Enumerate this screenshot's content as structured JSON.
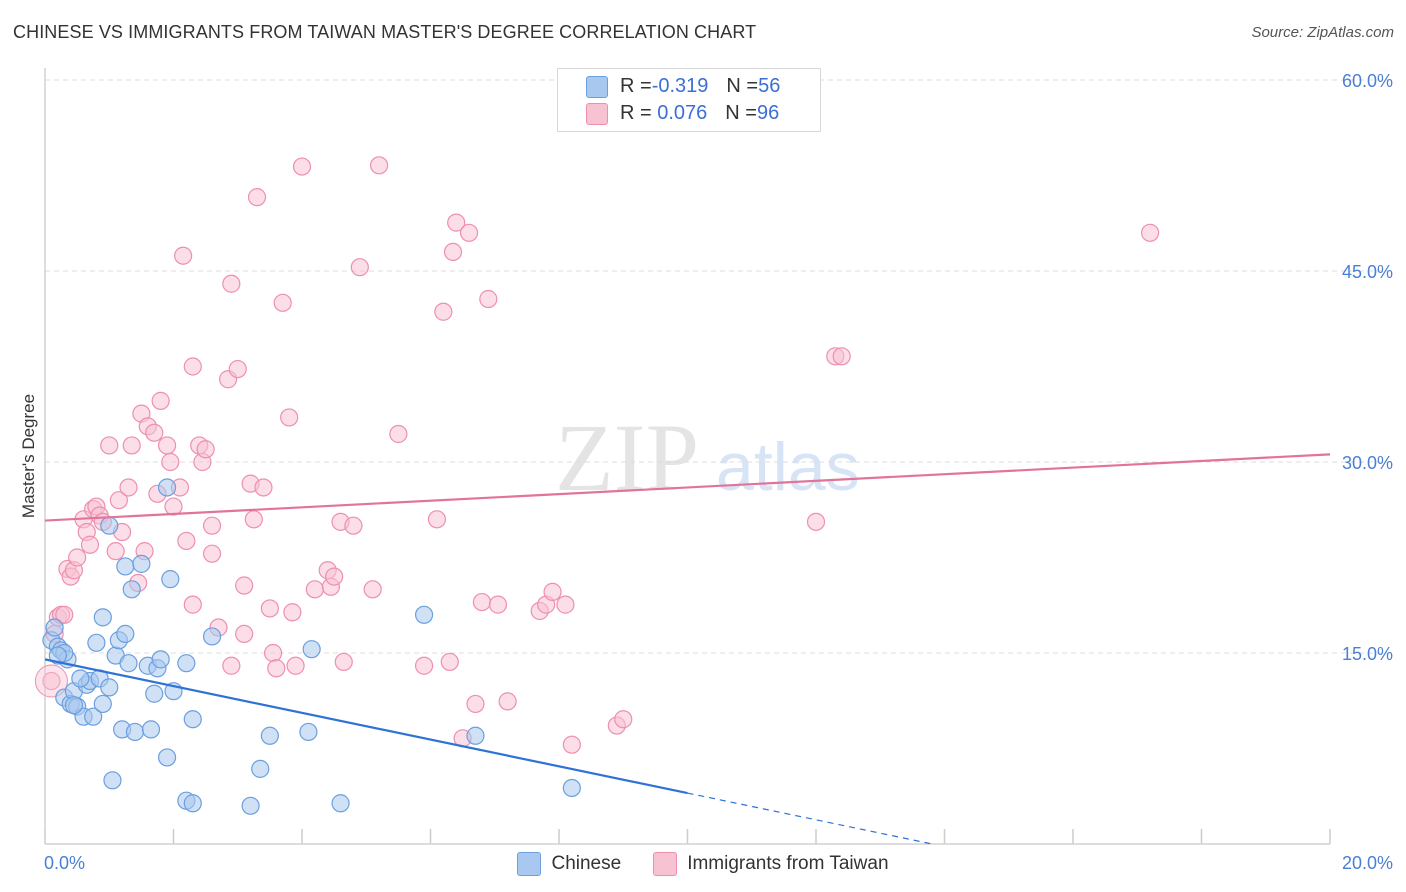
{
  "title": "CHINESE VS IMMIGRANTS FROM TAIWAN MASTER'S DEGREE CORRELATION CHART",
  "source": "Source: ZipAtlas.com",
  "watermark": {
    "zip": "ZIP",
    "atlas": "atlas"
  },
  "colors": {
    "blue_fill": "#a9c8ef",
    "blue_stroke": "#6a9fe0",
    "blue_line": "#2f72d6",
    "pink_fill": "#f7c3d3",
    "pink_stroke": "#ee8fae",
    "pink_line": "#e2739b",
    "axis_text": "#4a7fd4",
    "grid": "#dddddd"
  },
  "legend": {
    "rows": [
      {
        "r_label": "R = ",
        "r_value": "-0.319",
        "n_label": "N = ",
        "n_value": "56",
        "series": "blue"
      },
      {
        "r_label": "R = ",
        "r_value": " 0.076",
        "n_label": "N = ",
        "n_value": "96",
        "series": "pink"
      }
    ]
  },
  "bottom_legend": [
    "Chinese",
    "Immigrants from Taiwan"
  ],
  "chart_data": {
    "type": "scatter",
    "title": "CHINESE VS IMMIGRANTS FROM TAIWAN MASTER'S DEGREE CORRELATION CHART",
    "xlabel": "",
    "ylabel": "Master's Degree",
    "xlim": [
      0,
      20
    ],
    "ylim": [
      0,
      60
    ],
    "x_tick_labels": [
      "0.0%",
      "20.0%"
    ],
    "y_ticks": [
      15,
      30,
      45,
      60
    ],
    "y_tick_labels": [
      "15.0%",
      "30.0%",
      "45.0%",
      "60.0%"
    ],
    "grid": true,
    "series": [
      {
        "name": "Chinese",
        "color": "blue",
        "trend": {
          "x0": 0,
          "y0": 14.5,
          "x1": 20,
          "y1": -6.5,
          "solid_until_x": 10
        },
        "points": [
          [
            0.1,
            16.0
          ],
          [
            0.15,
            17.0
          ],
          [
            0.2,
            15.5
          ],
          [
            0.25,
            15.2
          ],
          [
            0.3,
            11.5
          ],
          [
            0.35,
            14.5
          ],
          [
            0.4,
            11.0
          ],
          [
            0.45,
            12.0
          ],
          [
            0.5,
            10.8
          ],
          [
            0.6,
            10.0
          ],
          [
            0.65,
            12.5
          ],
          [
            0.7,
            12.8
          ],
          [
            0.75,
            10.0
          ],
          [
            0.8,
            15.8
          ],
          [
            0.85,
            13.0
          ],
          [
            0.9,
            17.8
          ],
          [
            1.0,
            25.0
          ],
          [
            1.0,
            12.3
          ],
          [
            1.05,
            5.0
          ],
          [
            1.1,
            14.8
          ],
          [
            1.15,
            16.0
          ],
          [
            1.2,
            9.0
          ],
          [
            1.25,
            21.8
          ],
          [
            1.3,
            14.2
          ],
          [
            1.35,
            20.0
          ],
          [
            1.4,
            8.8
          ],
          [
            1.5,
            22.0
          ],
          [
            1.6,
            14.0
          ],
          [
            1.65,
            9.0
          ],
          [
            1.7,
            11.8
          ],
          [
            1.75,
            13.8
          ],
          [
            1.8,
            14.5
          ],
          [
            1.9,
            28.0
          ],
          [
            1.9,
            6.8
          ],
          [
            1.95,
            20.8
          ],
          [
            2.0,
            12.0
          ],
          [
            2.2,
            14.2
          ],
          [
            2.2,
            3.4
          ],
          [
            2.3,
            3.2
          ],
          [
            2.3,
            9.8
          ],
          [
            2.6,
            16.3
          ],
          [
            3.2,
            3.0
          ],
          [
            3.35,
            5.9
          ],
          [
            3.5,
            8.5
          ],
          [
            4.1,
            8.8
          ],
          [
            4.15,
            15.3
          ],
          [
            4.6,
            3.2
          ],
          [
            5.9,
            18.0
          ],
          [
            6.7,
            8.5
          ],
          [
            8.2,
            4.4
          ],
          [
            0.3,
            15.0
          ],
          [
            0.55,
            13.0
          ],
          [
            0.9,
            11.0
          ],
          [
            1.25,
            16.5
          ],
          [
            0.2,
            14.8
          ],
          [
            0.45,
            10.9
          ]
        ]
      },
      {
        "name": "Immigrants from Taiwan",
        "color": "pink",
        "trend": {
          "x0": 0,
          "y0": 25.4,
          "x1": 20,
          "y1": 30.6,
          "solid_until_x": 20
        },
        "points": [
          [
            0.1,
            12.8
          ],
          [
            0.15,
            16.5
          ],
          [
            0.2,
            17.8
          ],
          [
            0.25,
            18.0
          ],
          [
            0.3,
            18.0
          ],
          [
            0.35,
            21.6
          ],
          [
            0.4,
            21.0
          ],
          [
            0.45,
            21.5
          ],
          [
            0.5,
            22.5
          ],
          [
            0.6,
            25.5
          ],
          [
            0.65,
            24.5
          ],
          [
            0.7,
            23.5
          ],
          [
            0.75,
            26.3
          ],
          [
            0.8,
            26.5
          ],
          [
            0.85,
            25.8
          ],
          [
            0.9,
            25.3
          ],
          [
            1.0,
            31.3
          ],
          [
            1.1,
            23.0
          ],
          [
            1.15,
            27.0
          ],
          [
            1.2,
            24.5
          ],
          [
            1.3,
            28.0
          ],
          [
            1.35,
            31.3
          ],
          [
            1.45,
            20.5
          ],
          [
            1.5,
            33.8
          ],
          [
            1.55,
            23.0
          ],
          [
            1.6,
            32.8
          ],
          [
            1.7,
            32.3
          ],
          [
            1.75,
            27.5
          ],
          [
            1.8,
            34.8
          ],
          [
            1.9,
            31.3
          ],
          [
            1.95,
            30.0
          ],
          [
            2.0,
            26.5
          ],
          [
            2.1,
            28.0
          ],
          [
            2.15,
            46.2
          ],
          [
            2.2,
            23.8
          ],
          [
            2.3,
            37.5
          ],
          [
            2.3,
            18.8
          ],
          [
            2.4,
            31.3
          ],
          [
            2.45,
            30.0
          ],
          [
            2.5,
            31.0
          ],
          [
            2.6,
            22.8
          ],
          [
            2.6,
            25.0
          ],
          [
            2.7,
            17.0
          ],
          [
            2.85,
            36.5
          ],
          [
            2.9,
            44.0
          ],
          [
            2.9,
            14.0
          ],
          [
            3.0,
            37.3
          ],
          [
            3.1,
            20.3
          ],
          [
            3.1,
            16.5
          ],
          [
            3.2,
            28.3
          ],
          [
            3.25,
            25.5
          ],
          [
            3.3,
            50.8
          ],
          [
            3.4,
            28.0
          ],
          [
            3.5,
            18.5
          ],
          [
            3.55,
            15.0
          ],
          [
            3.6,
            13.8
          ],
          [
            3.7,
            42.5
          ],
          [
            3.8,
            33.5
          ],
          [
            3.85,
            18.2
          ],
          [
            3.9,
            14.0
          ],
          [
            4.0,
            53.2
          ],
          [
            4.2,
            20.0
          ],
          [
            4.4,
            21.5
          ],
          [
            4.45,
            20.2
          ],
          [
            4.5,
            21.0
          ],
          [
            4.6,
            25.3
          ],
          [
            4.65,
            14.3
          ],
          [
            4.8,
            25.0
          ],
          [
            4.9,
            45.3
          ],
          [
            5.1,
            20.0
          ],
          [
            5.2,
            53.3
          ],
          [
            5.5,
            32.2
          ],
          [
            5.9,
            14.0
          ],
          [
            6.1,
            25.5
          ],
          [
            6.2,
            41.8
          ],
          [
            6.3,
            14.3
          ],
          [
            6.35,
            46.5
          ],
          [
            6.4,
            48.8
          ],
          [
            6.5,
            8.3
          ],
          [
            6.6,
            48.0
          ],
          [
            6.7,
            11.0
          ],
          [
            6.8,
            19.0
          ],
          [
            6.9,
            42.8
          ],
          [
            7.05,
            18.8
          ],
          [
            7.2,
            11.2
          ],
          [
            7.7,
            18.3
          ],
          [
            7.8,
            18.8
          ],
          [
            7.9,
            19.8
          ],
          [
            8.1,
            18.8
          ],
          [
            8.2,
            7.8
          ],
          [
            8.9,
            9.3
          ],
          [
            9.0,
            9.8
          ],
          [
            12.0,
            25.3
          ],
          [
            12.3,
            38.3
          ],
          [
            12.4,
            38.3
          ],
          [
            17.2,
            48.0
          ]
        ]
      }
    ]
  }
}
